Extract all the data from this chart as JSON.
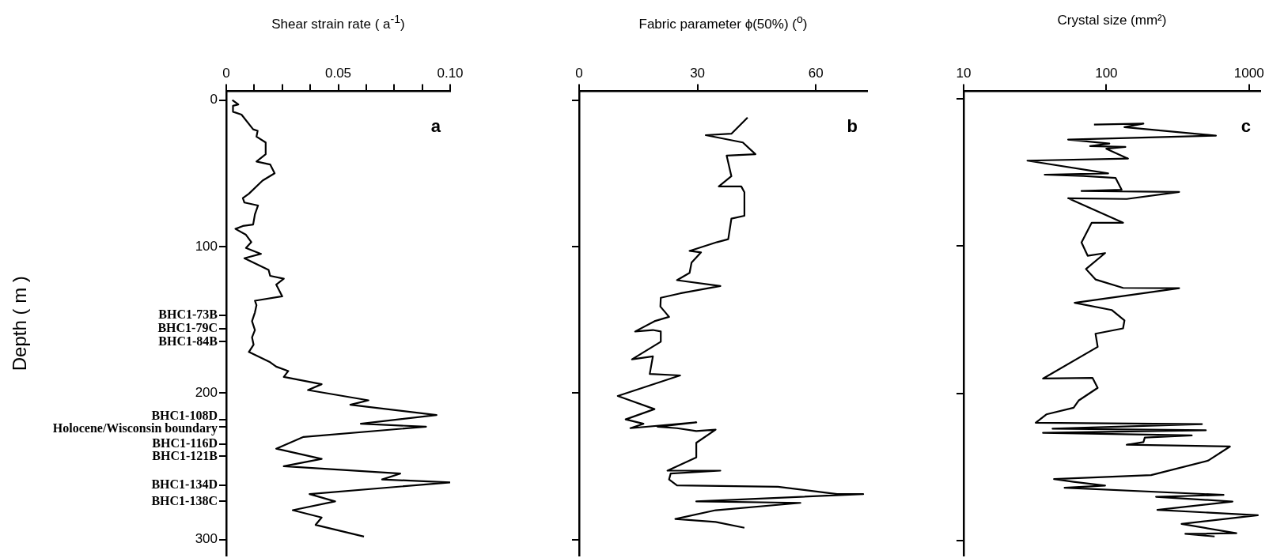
{
  "chart_data": [
    {
      "type": "line",
      "title": "Shear strain rate ( a$^{-1}$)",
      "ylabel": "Depth ( m )",
      "color": "#000000",
      "x": [
        0.0027,
        0.0054,
        0.003,
        0.003,
        0.0068,
        0.012,
        0.014,
        0.0135,
        0.0176,
        0.0176,
        0.0135,
        0.0196,
        0.0216,
        0.0162,
        0.0101,
        0.0074,
        0.0081,
        0.0142,
        0.0128,
        0.012,
        0.0074,
        0.0041,
        0.0088,
        0.0112,
        0.0088,
        0.0155,
        0.0081,
        0.0189,
        0.0196,
        0.0257,
        0.0223,
        0.025,
        0.0128,
        0.0135,
        0.0128,
        0.0115,
        0.0128,
        0.0115,
        0.0122,
        0.0101,
        0.0196,
        0.0223,
        0.0277,
        0.0257,
        0.0426,
        0.0365,
        0.0635,
        0.0554,
        0.0939,
        0.0601,
        0.0892,
        0.0345,
        0.0223,
        0.0426,
        0.0257,
        0.0777,
        0.0696,
        0.1,
        0.0372,
        0.0486,
        0.0297,
        0.0426,
        0.0399,
        0.0615
      ],
      "values": [
        0,
        3,
        4,
        8,
        10,
        20,
        21,
        25,
        29,
        37,
        42,
        44,
        50,
        55,
        64,
        67,
        70,
        72,
        78,
        85,
        86,
        88,
        92,
        97,
        101,
        105,
        108,
        116,
        120,
        122,
        126,
        134,
        137,
        140,
        145,
        151,
        157,
        162,
        167,
        172,
        179,
        182,
        185,
        189,
        194,
        198,
        205,
        208,
        215,
        221,
        223,
        230,
        238,
        245,
        250,
        255,
        259,
        261,
        269,
        274,
        280,
        285,
        290,
        298
      ],
      "xlim": [
        0,
        0.1
      ],
      "xticks": [
        0,
        {
          "value": 0.0125,
          "label": null
        },
        {
          "value": 0.025,
          "label": null
        },
        {
          "value": 0.0375,
          "label": null
        },
        0.05,
        {
          "value": 0.0625,
          "label": null
        },
        {
          "value": 0.075,
          "label": null
        },
        {
          "value": 0.0875,
          "label": null
        },
        {
          "value": 0.1,
          "label": "0.10"
        }
      ],
      "ylim": [
        311,
        -6
      ],
      "yticks": [
        0,
        100,
        {
          "value": 147,
          "label": "BHC1-73B"
        },
        {
          "value": 156,
          "label": "BHC1-79C"
        },
        {
          "value": 165,
          "label": "BHC1-84B"
        },
        200,
        {
          "value": 218,
          "label": "BHC1-108D"
        },
        {
          "value": 223,
          "label": "Holocene/Wisconsin boundary"
        },
        {
          "value": 235,
          "label": "BHC1-116D"
        },
        {
          "value": 243,
          "label": "BHC1-121B"
        },
        {
          "value": 263,
          "label": "BHC1-134D"
        },
        {
          "value": 274,
          "label": "BHC1-138C"
        },
        300
      ],
      "annotations": [
        "a"
      ]
    },
    {
      "type": "line",
      "title": "Fabric parameter ϕ(50%) ($^{o}$)",
      "color": "#000000",
      "tick_labels": "x",
      "x": [
        42.7,
        38.6,
        32.1,
        41.5,
        44.7,
        37.4,
        38.6,
        35.4,
        41.1,
        41.9,
        41.9,
        38.6,
        37.8,
        35.0,
        28.0,
        30.9,
        28.5,
        28.0,
        24.8,
        35.8,
        25.6,
        20.7,
        20.6,
        22.8,
        19.1,
        14.2,
        18.7,
        20.7,
        20.7,
        13.4,
        18.7,
        17.9,
        25.6,
        9.8,
        19.1,
        11.8,
        16.3,
        13.0,
        29.7,
        19.9,
        24.8,
        29.7,
        34.6,
        29.7,
        29.7,
        22.4,
        35.8,
        23.2,
        22.8,
        24.8,
        50.4,
        65.4,
        72,
        29.7,
        56.1,
        34.6,
        24.4,
        34.6,
        41.9
      ],
      "values": [
        12,
        23,
        24,
        29,
        37,
        38,
        52,
        59,
        59,
        63,
        79,
        81,
        95,
        97,
        103,
        104,
        111,
        118,
        123,
        127,
        132,
        135,
        141,
        148,
        151,
        158,
        157,
        158,
        165,
        177,
        175,
        187,
        188,
        202,
        211,
        218,
        221,
        224,
        220,
        223,
        224,
        226,
        225,
        234,
        244,
        253,
        253,
        255,
        259,
        263,
        264,
        269,
        269,
        274,
        275,
        280,
        286,
        288,
        292
      ],
      "xlim": [
        0,
        73
      ],
      "xticks": [
        0,
        30,
        60
      ],
      "ylim": [
        311,
        -6
      ],
      "yticks": [
        0,
        100,
        200,
        300
      ],
      "annotations": [
        "b"
      ]
    },
    {
      "type": "line",
      "title": "Crystal size (mm²)",
      "color": "#000000",
      "tick_labels": "x",
      "log": "x",
      "x": [
        82,
        182,
        134,
        586,
        54,
        105,
        77,
        136,
        100,
        142,
        28,
        103,
        37,
        69,
        116,
        128,
        67,
        324,
        139,
        54,
        131,
        79,
        67,
        74,
        98,
        72,
        84,
        131,
        324,
        60,
        109,
        134,
        131,
        84,
        87,
        36,
        80,
        87,
        64,
        59,
        38,
        32,
        468,
        42,
        498,
        36,
        397,
        186,
        182,
        139,
        735,
        519,
        206,
        43,
        59,
        98,
        51,
        663,
        223,
        766,
        228,
        1153,
        337,
        815,
        358,
        574
      ],
      "values": [
        17.6,
        17,
        19.4,
        25.1,
        27.8,
        30.5,
        32.2,
        32.8,
        34,
        40.7,
        42.1,
        50.7,
        51.6,
        52.5,
        53.8,
        61.8,
        62.7,
        63.3,
        68.1,
        67.6,
        84.2,
        84.2,
        97.6,
        106.6,
        104.8,
        115.6,
        122.7,
        128.4,
        128.6,
        138.5,
        143.4,
        150.5,
        155.9,
        159.5,
        168.4,
        189.9,
        189.4,
        196.2,
        204.8,
        209.7,
        214.2,
        219.9,
        220.8,
        223.9,
        225,
        226.7,
        228.5,
        229.9,
        233,
        234.8,
        236,
        245.5,
        255.4,
        258.1,
        259.9,
        262.5,
        264,
        268.8,
        270.1,
        273.3,
        279,
        282.6,
        288.5,
        294.8,
        295.2,
        297
      ],
      "xlim": [
        10,
        1200
      ],
      "xticks": [
        10,
        100,
        1000
      ],
      "ylim": [
        310,
        -5
      ],
      "yticks": [
        0,
        100,
        200,
        300
      ],
      "annotations": [
        "c"
      ]
    }
  ]
}
